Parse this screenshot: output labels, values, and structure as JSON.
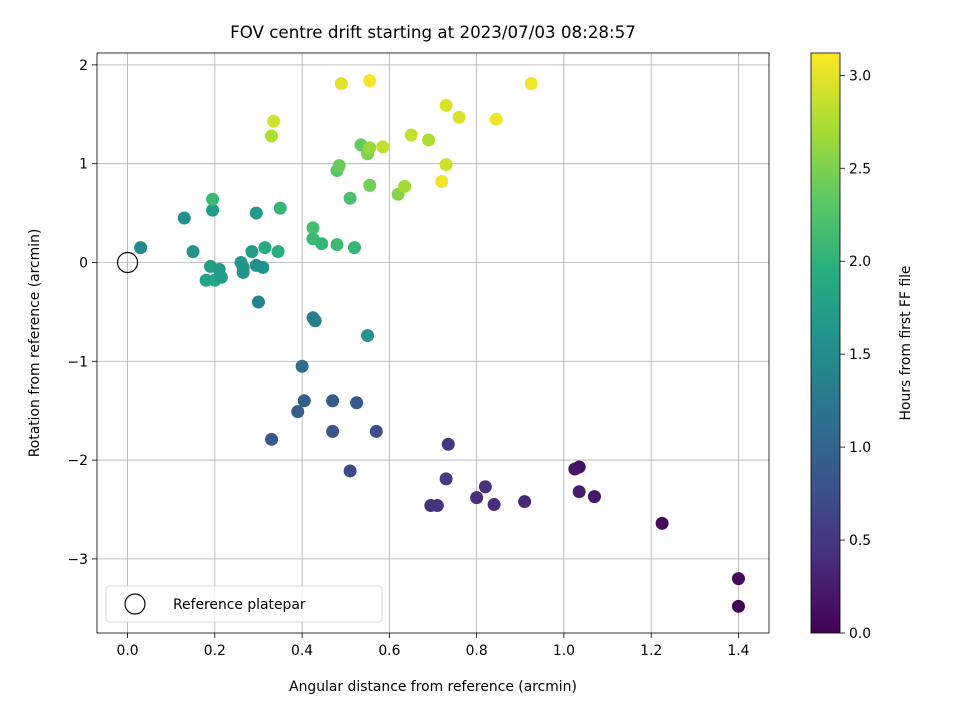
{
  "chart_data": {
    "type": "scatter",
    "title": "FOV centre drift starting at 2023/07/03 08:28:57",
    "xlabel": "Angular distance from reference (arcmin)",
    "ylabel": "Rotation from reference (arcmin)",
    "xlim": [
      -0.07,
      1.47
    ],
    "ylim": [
      -3.75,
      2.12
    ],
    "xticks": [
      0.0,
      0.2,
      0.4,
      0.6,
      0.8,
      1.0,
      1.2,
      1.4
    ],
    "xtick_labels": [
      "0.0",
      "0.2",
      "0.4",
      "0.6",
      "0.8",
      "1.0",
      "1.2",
      "1.4"
    ],
    "yticks": [
      -3,
      -2,
      -1,
      0,
      1,
      2
    ],
    "ytick_labels": [
      "−3",
      "−2",
      "−1",
      "0",
      "1",
      "2"
    ],
    "grid": true,
    "colormap": "viridis",
    "colorbar": {
      "label": "Hours from first FF file",
      "range": [
        0.0,
        3.12
      ],
      "ticks": [
        0.0,
        0.5,
        1.0,
        1.5,
        2.0,
        2.5,
        3.0
      ],
      "tick_labels": [
        "0.0",
        "0.5",
        "1.0",
        "1.5",
        "2.0",
        "2.5",
        "3.0"
      ]
    },
    "legend": {
      "placement": "lower-left",
      "entries": [
        "Reference platepar"
      ]
    },
    "reference": {
      "x": 0.0,
      "y": 0.0,
      "label": "Reference platepar"
    },
    "series": [
      {
        "points": [
          {
            "x": 1.4,
            "y": -3.48,
            "c": 0.0
          },
          {
            "x": 1.4,
            "y": -3.2,
            "c": 0.05
          },
          {
            "x": 1.225,
            "y": -2.64,
            "c": 0.1
          },
          {
            "x": 1.07,
            "y": -2.37,
            "c": 0.2
          },
          {
            "x": 1.035,
            "y": -2.32,
            "c": 0.25
          },
          {
            "x": 1.035,
            "y": -2.07,
            "c": 0.15
          },
          {
            "x": 1.025,
            "y": -2.09,
            "c": 0.18
          },
          {
            "x": 0.91,
            "y": -2.42,
            "c": 0.35
          },
          {
            "x": 0.84,
            "y": -2.45,
            "c": 0.4
          },
          {
            "x": 0.82,
            "y": -2.27,
            "c": 0.45
          },
          {
            "x": 0.8,
            "y": -2.38,
            "c": 0.42
          },
          {
            "x": 0.73,
            "y": -2.19,
            "c": 0.55
          },
          {
            "x": 0.735,
            "y": -1.84,
            "c": 0.5
          },
          {
            "x": 0.71,
            "y": -2.46,
            "c": 0.48
          },
          {
            "x": 0.695,
            "y": -2.46,
            "c": 0.45
          },
          {
            "x": 0.57,
            "y": -1.71,
            "c": 0.75
          },
          {
            "x": 0.525,
            "y": -1.42,
            "c": 0.85
          },
          {
            "x": 0.51,
            "y": -2.11,
            "c": 0.7
          },
          {
            "x": 0.47,
            "y": -1.4,
            "c": 0.9
          },
          {
            "x": 0.47,
            "y": -1.71,
            "c": 0.8
          },
          {
            "x": 0.405,
            "y": -1.4,
            "c": 0.95
          },
          {
            "x": 0.39,
            "y": -1.51,
            "c": 0.9
          },
          {
            "x": 0.33,
            "y": -1.79,
            "c": 0.85
          },
          {
            "x": 0.4,
            "y": -1.05,
            "c": 1.1
          },
          {
            "x": 0.425,
            "y": -0.56,
            "c": 1.35
          },
          {
            "x": 0.43,
            "y": -0.59,
            "c": 1.3
          },
          {
            "x": 0.55,
            "y": -0.74,
            "c": 1.6
          },
          {
            "x": 0.3,
            "y": -0.4,
            "c": 1.4
          },
          {
            "x": 0.03,
            "y": 0.15,
            "c": 1.45
          },
          {
            "x": 0.13,
            "y": 0.45,
            "c": 1.55
          },
          {
            "x": 0.15,
            "y": 0.11,
            "c": 1.6
          },
          {
            "x": 0.195,
            "y": 0.53,
            "c": 1.7
          },
          {
            "x": 0.18,
            "y": -0.18,
            "c": 1.8
          },
          {
            "x": 0.19,
            "y": -0.04,
            "c": 1.75
          },
          {
            "x": 0.2,
            "y": -0.18,
            "c": 1.85
          },
          {
            "x": 0.21,
            "y": -0.07,
            "c": 1.7
          },
          {
            "x": 0.215,
            "y": -0.15,
            "c": 1.72
          },
          {
            "x": 0.26,
            "y": 0.0,
            "c": 1.65
          },
          {
            "x": 0.265,
            "y": -0.05,
            "c": 1.6
          },
          {
            "x": 0.265,
            "y": -0.1,
            "c": 1.62
          },
          {
            "x": 0.285,
            "y": 0.11,
            "c": 1.75
          },
          {
            "x": 0.295,
            "y": -0.03,
            "c": 1.55
          },
          {
            "x": 0.31,
            "y": -0.05,
            "c": 1.58
          },
          {
            "x": 0.295,
            "y": 0.5,
            "c": 1.7
          },
          {
            "x": 0.315,
            "y": 0.15,
            "c": 1.9
          },
          {
            "x": 0.345,
            "y": 0.11,
            "c": 1.95
          },
          {
            "x": 0.35,
            "y": 0.55,
            "c": 2.05
          },
          {
            "x": 0.195,
            "y": 0.64,
            "c": 2.1
          },
          {
            "x": 0.425,
            "y": 0.35,
            "c": 2.15
          },
          {
            "x": 0.425,
            "y": 0.24,
            "c": 2.1
          },
          {
            "x": 0.445,
            "y": 0.19,
            "c": 2.05
          },
          {
            "x": 0.48,
            "y": 0.18,
            "c": 2.1
          },
          {
            "x": 0.52,
            "y": 0.15,
            "c": 2.05
          },
          {
            "x": 0.51,
            "y": 0.65,
            "c": 2.2
          },
          {
            "x": 0.48,
            "y": 0.93,
            "c": 2.3
          },
          {
            "x": 0.485,
            "y": 0.98,
            "c": 2.4
          },
          {
            "x": 0.535,
            "y": 1.19,
            "c": 2.35
          },
          {
            "x": 0.55,
            "y": 1.1,
            "c": 2.5
          },
          {
            "x": 0.555,
            "y": 1.16,
            "c": 2.65
          },
          {
            "x": 0.555,
            "y": 0.78,
            "c": 2.45
          },
          {
            "x": 0.585,
            "y": 1.17,
            "c": 2.85
          },
          {
            "x": 0.62,
            "y": 0.69,
            "c": 2.55
          },
          {
            "x": 0.635,
            "y": 0.77,
            "c": 2.7
          },
          {
            "x": 0.65,
            "y": 1.29,
            "c": 2.85
          },
          {
            "x": 0.69,
            "y": 1.24,
            "c": 2.75
          },
          {
            "x": 0.72,
            "y": 0.82,
            "c": 3.05
          },
          {
            "x": 0.73,
            "y": 0.99,
            "c": 2.9
          },
          {
            "x": 0.73,
            "y": 1.59,
            "c": 2.95
          },
          {
            "x": 0.76,
            "y": 1.47,
            "c": 2.95
          },
          {
            "x": 0.845,
            "y": 1.45,
            "c": 3.05
          },
          {
            "x": 0.925,
            "y": 1.81,
            "c": 3.05
          },
          {
            "x": 0.33,
            "y": 1.28,
            "c": 2.75
          },
          {
            "x": 0.335,
            "y": 1.43,
            "c": 2.9
          },
          {
            "x": 0.49,
            "y": 1.81,
            "c": 3.0
          },
          {
            "x": 0.555,
            "y": 1.84,
            "c": 3.1
          }
        ]
      }
    ]
  },
  "colors": {
    "grid": "#b0b0b0",
    "axis": "#000000",
    "background": "#ffffff"
  }
}
